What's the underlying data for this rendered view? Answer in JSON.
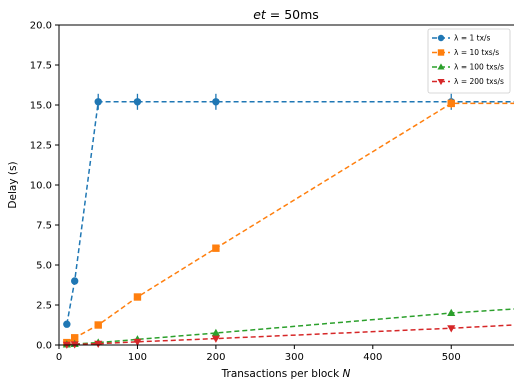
{
  "chart_data": {
    "type": "line",
    "title_prefix": "et",
    "title_suffix": " = 50ms",
    "xlabel_prefix": "Transactions per block ",
    "xlabel_var": "N",
    "ylabel": "Delay (s)",
    "xlim": [
      0,
      580
    ],
    "ylim": [
      0,
      20
    ],
    "xticks": [
      0,
      100,
      200,
      300,
      400,
      500
    ],
    "yticks": [
      0.0,
      2.5,
      5.0,
      7.5,
      10.0,
      12.5,
      15.0,
      17.5,
      20.0
    ],
    "ytick_labels": [
      "0.0",
      "2.5",
      "5.0",
      "7.5",
      "10.0",
      "12.5",
      "15.0",
      "17.5",
      "20.0"
    ],
    "legend_position": "top-right",
    "series": [
      {
        "name": "λ = 1 tx/s",
        "color": "#1f77b4",
        "marker": "circle",
        "x": [
          10,
          20,
          50,
          100,
          200,
          500,
          580
        ],
        "y": [
          1.3,
          4.0,
          15.2,
          15.2,
          15.2,
          15.2,
          15.2
        ],
        "yerr": [
          0,
          0,
          0.5,
          0.5,
          0.5,
          0.5,
          0
        ]
      },
      {
        "name": "λ = 10 txs/s",
        "color": "#ff7f0e",
        "marker": "square",
        "x": [
          10,
          20,
          50,
          100,
          200,
          500,
          580
        ],
        "y": [
          0.15,
          0.45,
          1.25,
          3.0,
          6.05,
          15.1,
          15.1
        ],
        "yerr": [
          0,
          0,
          0,
          0,
          0,
          0.3,
          0
        ]
      },
      {
        "name": "λ = 100 txs/s",
        "color": "#2ca02c",
        "marker": "triangle-up",
        "x": [
          10,
          20,
          50,
          100,
          200,
          500,
          580
        ],
        "y": [
          0.03,
          0.06,
          0.15,
          0.35,
          0.75,
          2.0,
          2.25
        ],
        "yerr": [
          0,
          0,
          0,
          0,
          0,
          0,
          0
        ]
      },
      {
        "name": "λ = 200 txs/s",
        "color": "#d62728",
        "marker": "triangle-down",
        "x": [
          10,
          20,
          50,
          100,
          200,
          500,
          580
        ],
        "y": [
          0.02,
          0.04,
          0.08,
          0.2,
          0.4,
          1.05,
          1.25
        ],
        "yerr": [
          0,
          0,
          0,
          0,
          0,
          0,
          0
        ]
      }
    ]
  }
}
